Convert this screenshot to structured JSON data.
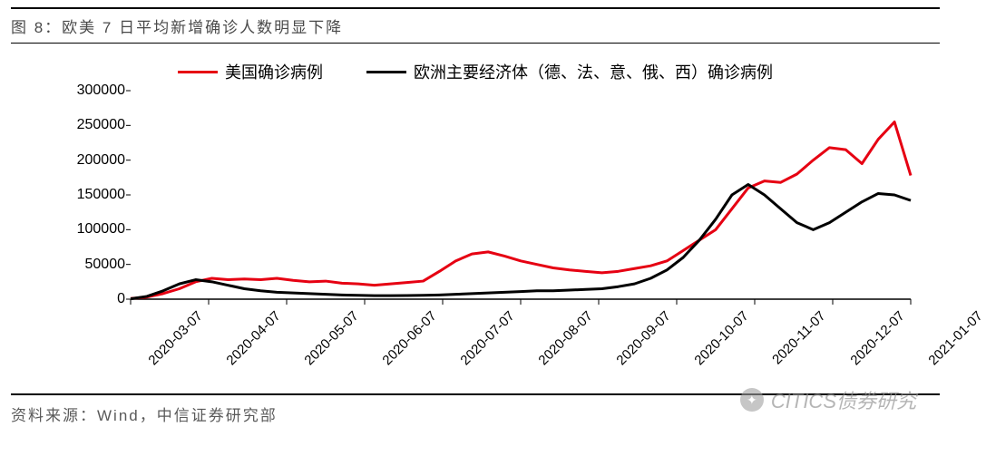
{
  "title": "图 8：欧美 7 日平均新增确诊人数明显下降",
  "source_label": "资料来源：Wind，中信证券研究部",
  "watermark": "CITICS债券研究",
  "legend": {
    "series1": "美国确诊病例",
    "series2": "欧洲主要经济体（德、法、意、俄、西）确诊病例"
  },
  "chart": {
    "type": "line",
    "background_color": "#ffffff",
    "axis_color": "#000000",
    "line_width": 3,
    "ylim": [
      0,
      300000
    ],
    "ytick_step": 50000,
    "yticks": [
      0,
      50000,
      100000,
      150000,
      200000,
      250000,
      300000
    ],
    "x_labels": [
      "2020-03-07",
      "2020-04-07",
      "2020-05-07",
      "2020-06-07",
      "2020-07-07",
      "2020-08-07",
      "2020-09-07",
      "2020-10-07",
      "2020-11-07",
      "2020-12-07",
      "2021-01-07"
    ],
    "n_points": 49,
    "series": [
      {
        "name": "us",
        "color": "#e60012",
        "values": [
          1000,
          3000,
          8000,
          15000,
          25000,
          30000,
          28000,
          29000,
          28000,
          30000,
          27000,
          25000,
          26000,
          23000,
          22000,
          20000,
          22000,
          24000,
          26000,
          40000,
          55000,
          65000,
          68000,
          62000,
          55000,
          50000,
          45000,
          42000,
          40000,
          38000,
          40000,
          44000,
          48000,
          55000,
          70000,
          85000,
          100000,
          130000,
          160000,
          170000,
          168000,
          180000,
          200000,
          218000,
          215000,
          195000,
          230000,
          255000,
          178000
        ]
      },
      {
        "name": "eu",
        "color": "#000000",
        "values": [
          500,
          4000,
          12000,
          22000,
          28000,
          25000,
          20000,
          15000,
          12000,
          10000,
          9000,
          8000,
          7000,
          6000,
          5500,
          5000,
          5000,
          5200,
          5500,
          6000,
          7000,
          8000,
          9000,
          10000,
          11000,
          12000,
          12000,
          13000,
          14000,
          15000,
          18000,
          22000,
          30000,
          42000,
          60000,
          85000,
          115000,
          150000,
          165000,
          150000,
          130000,
          110000,
          100000,
          110000,
          125000,
          140000,
          152000,
          150000,
          142000
        ]
      }
    ]
  }
}
